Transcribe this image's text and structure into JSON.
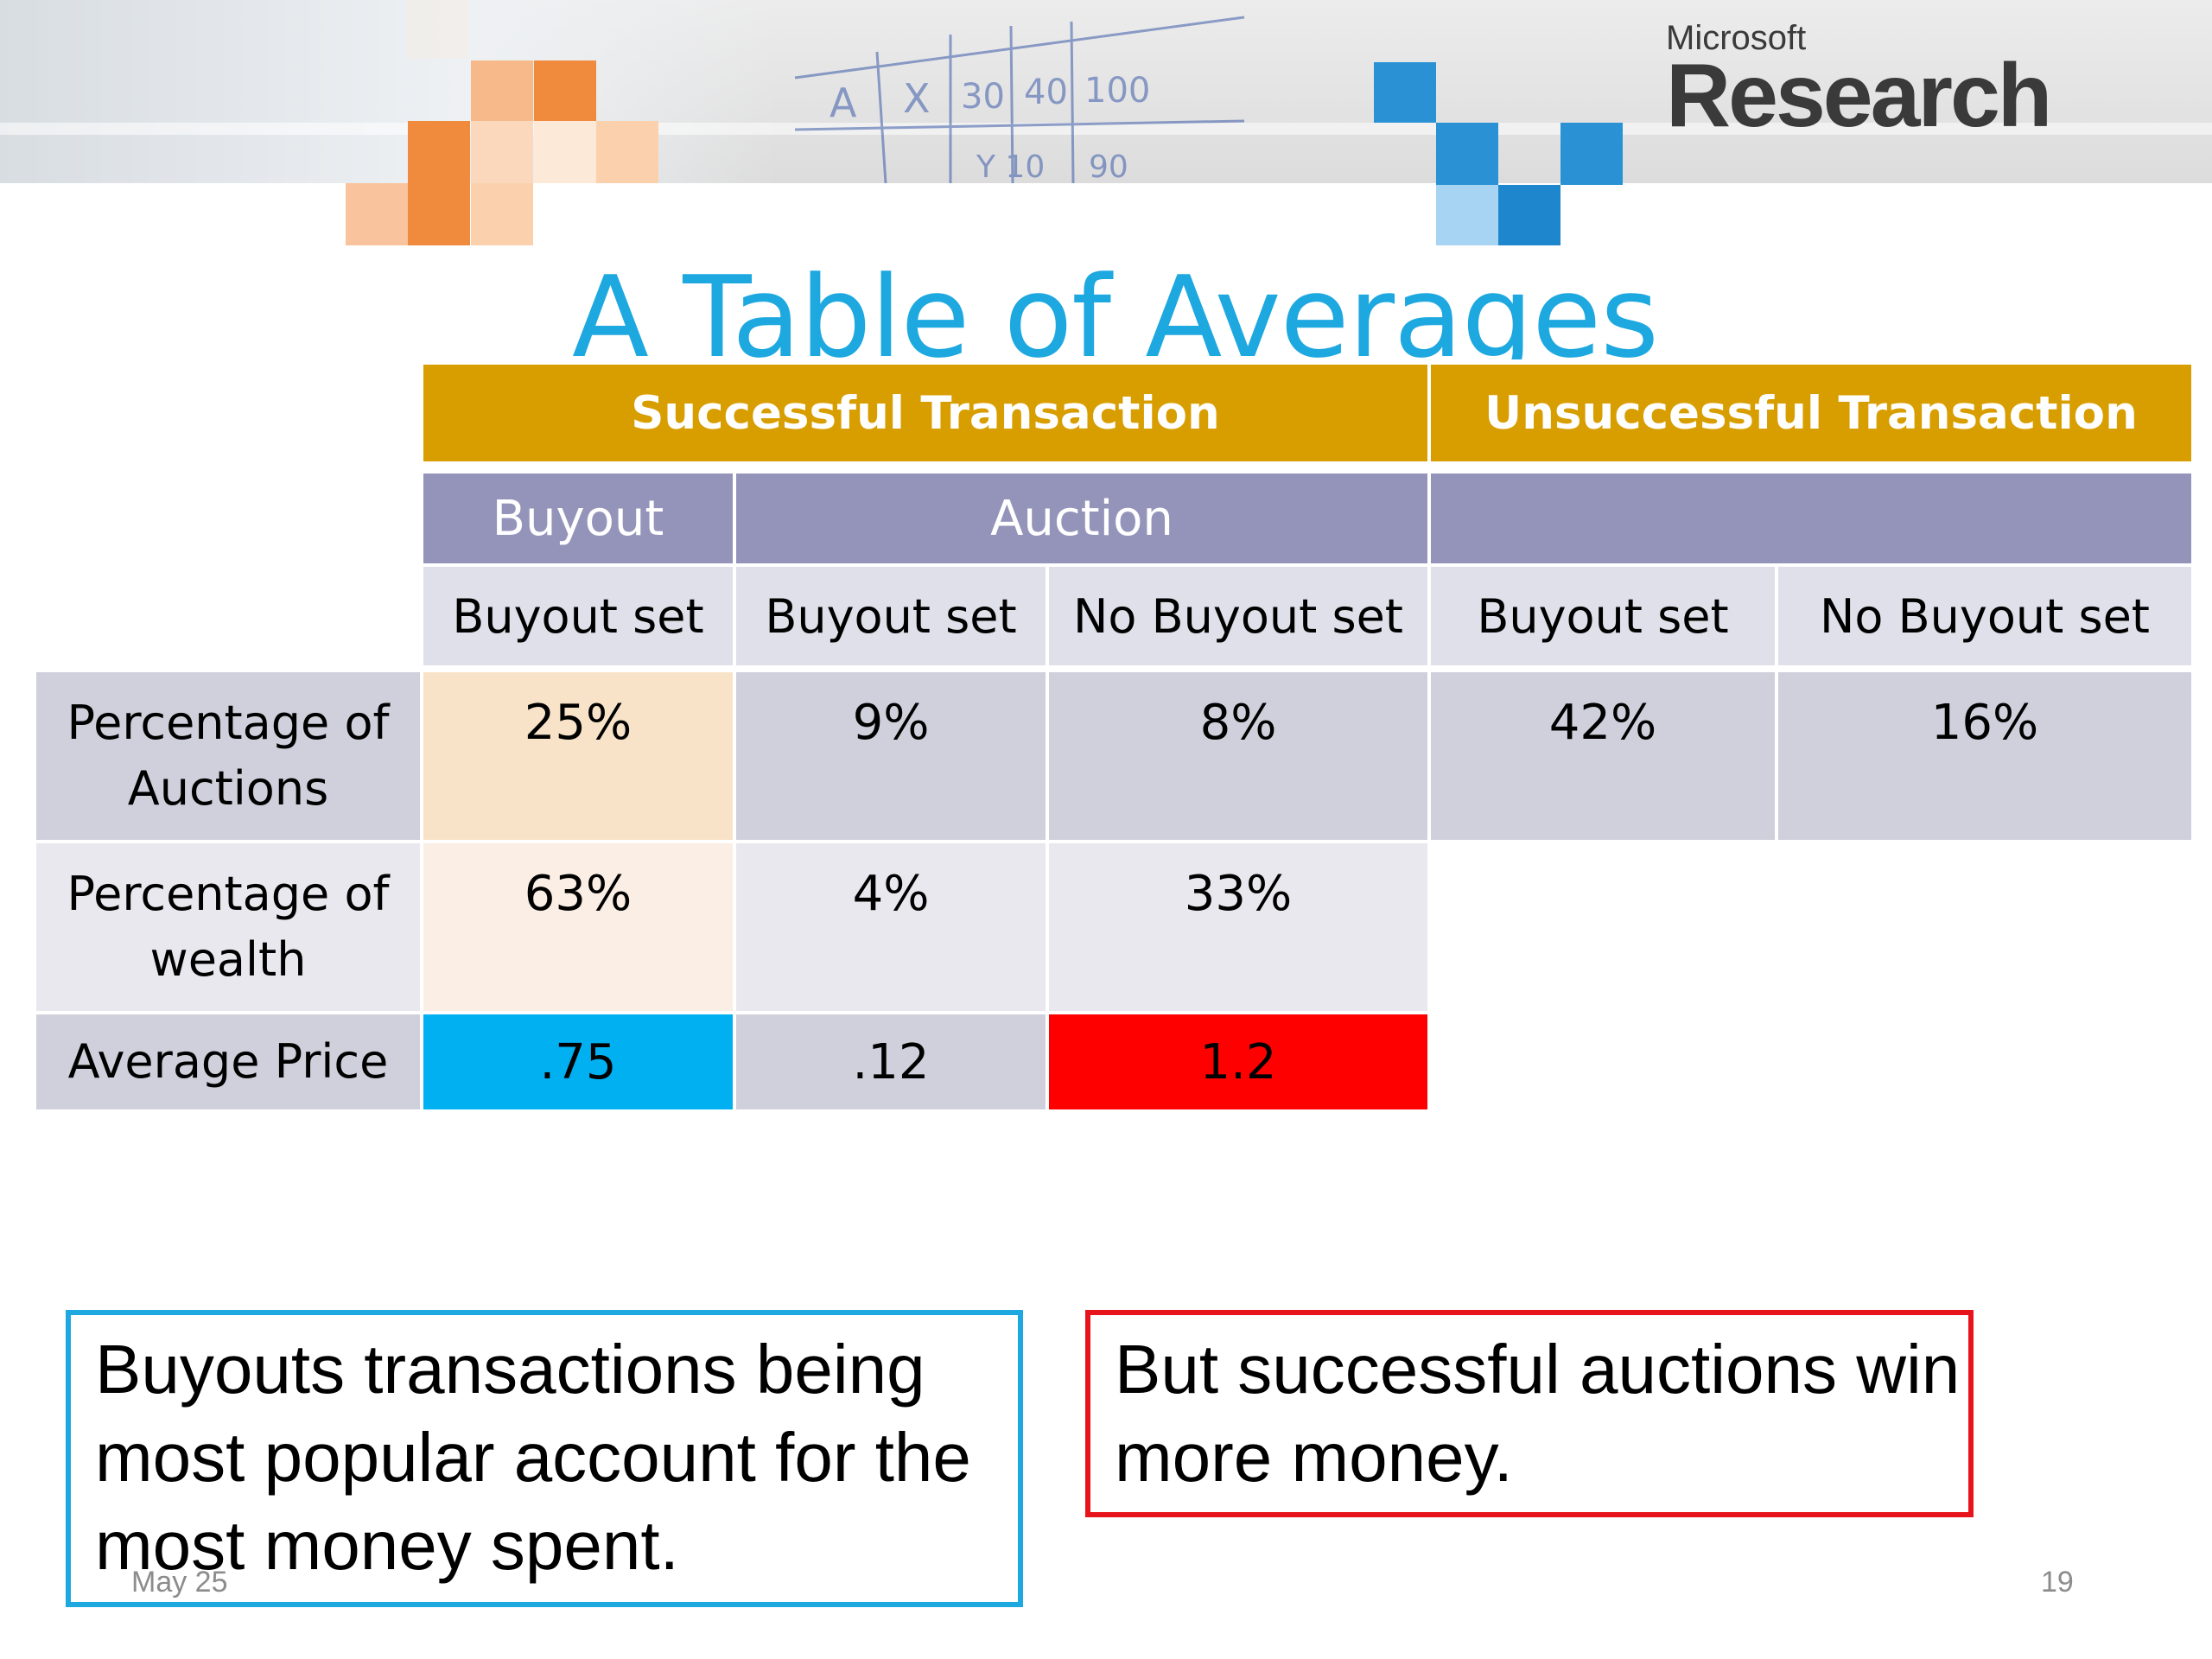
{
  "brand": {
    "logo_small": "Microsoft",
    "logo_big": "Research",
    "colors": {
      "title": "#1ea8e0",
      "group_header": "#d89e00",
      "sub_header": "#9494bb"
    }
  },
  "slide": {
    "title": "A Table of Averages",
    "date": "May 25",
    "page_number": "19"
  },
  "table": {
    "group_headers": [
      "Successful Transaction",
      "Unsuccessful Transaction"
    ],
    "sub_headers": [
      "Buyout",
      "Auction",
      ""
    ],
    "column_headers": [
      "Buyout set",
      "Buyout set",
      "No Buyout set",
      "Buyout set",
      "No Buyout set"
    ],
    "rows": [
      {
        "label": "Percentage of Auctions",
        "values": [
          "25%",
          "9%",
          "8%",
          "42%",
          "16%"
        ]
      },
      {
        "label": "Percentage of wealth",
        "values": [
          "63%",
          "4%",
          "33%"
        ]
      },
      {
        "label": "Average Price",
        "values": [
          ".75",
          ".12",
          "1.2"
        ]
      }
    ],
    "highlight_colors": {
      "average_price_buyout": "#00b0f0",
      "average_price_no_buyout": "#ff0000"
    }
  },
  "callouts": {
    "left": "Buyouts transactions being most popular account for the most money spent.",
    "right": "But successful auctions win more money."
  }
}
